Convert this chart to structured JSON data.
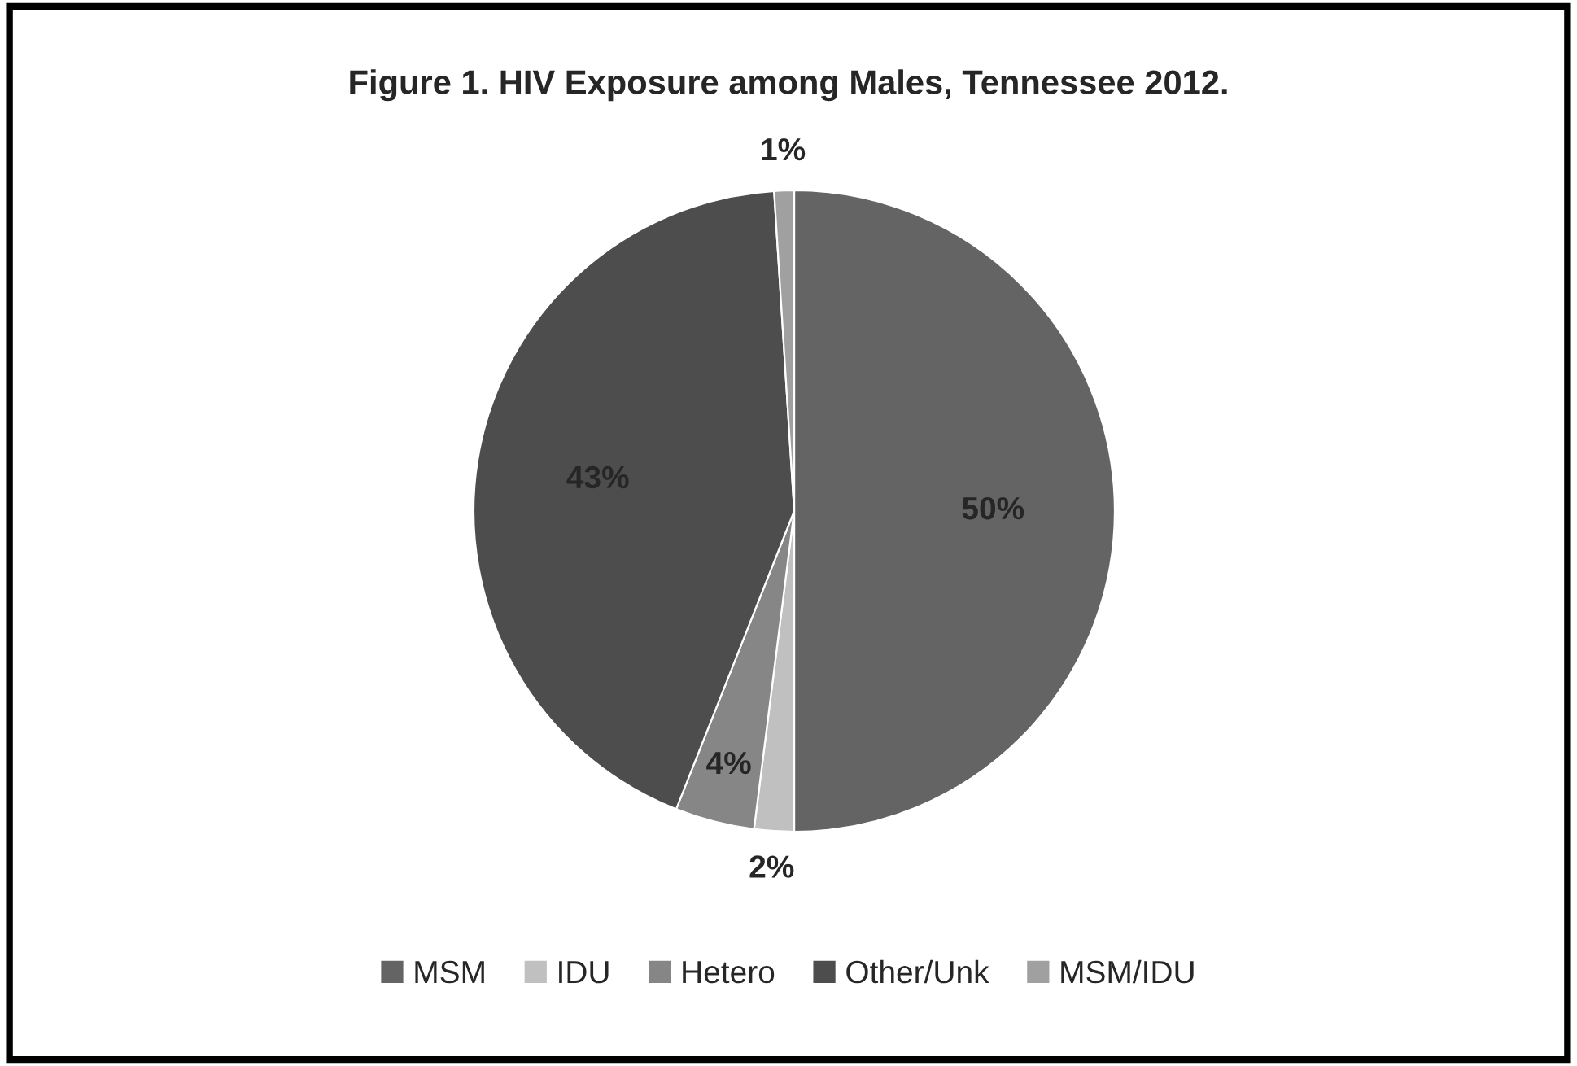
{
  "chart_data": {
    "type": "pie",
    "title": "Figure 1. HIV Exposure among Males, Tennessee 2012.",
    "categories": [
      "MSM",
      "IDU",
      "Hetero",
      "Other/Unk",
      "MSM/IDU"
    ],
    "values": [
      50,
      2,
      4,
      43,
      1
    ],
    "colors": [
      "#646464",
      "#c0c0c0",
      "#868686",
      "#4d4d4d",
      "#a0a0a0"
    ],
    "value_labels": [
      "50%",
      "2%",
      "4%",
      "43%",
      "1%"
    ],
    "legend": "bottom"
  }
}
